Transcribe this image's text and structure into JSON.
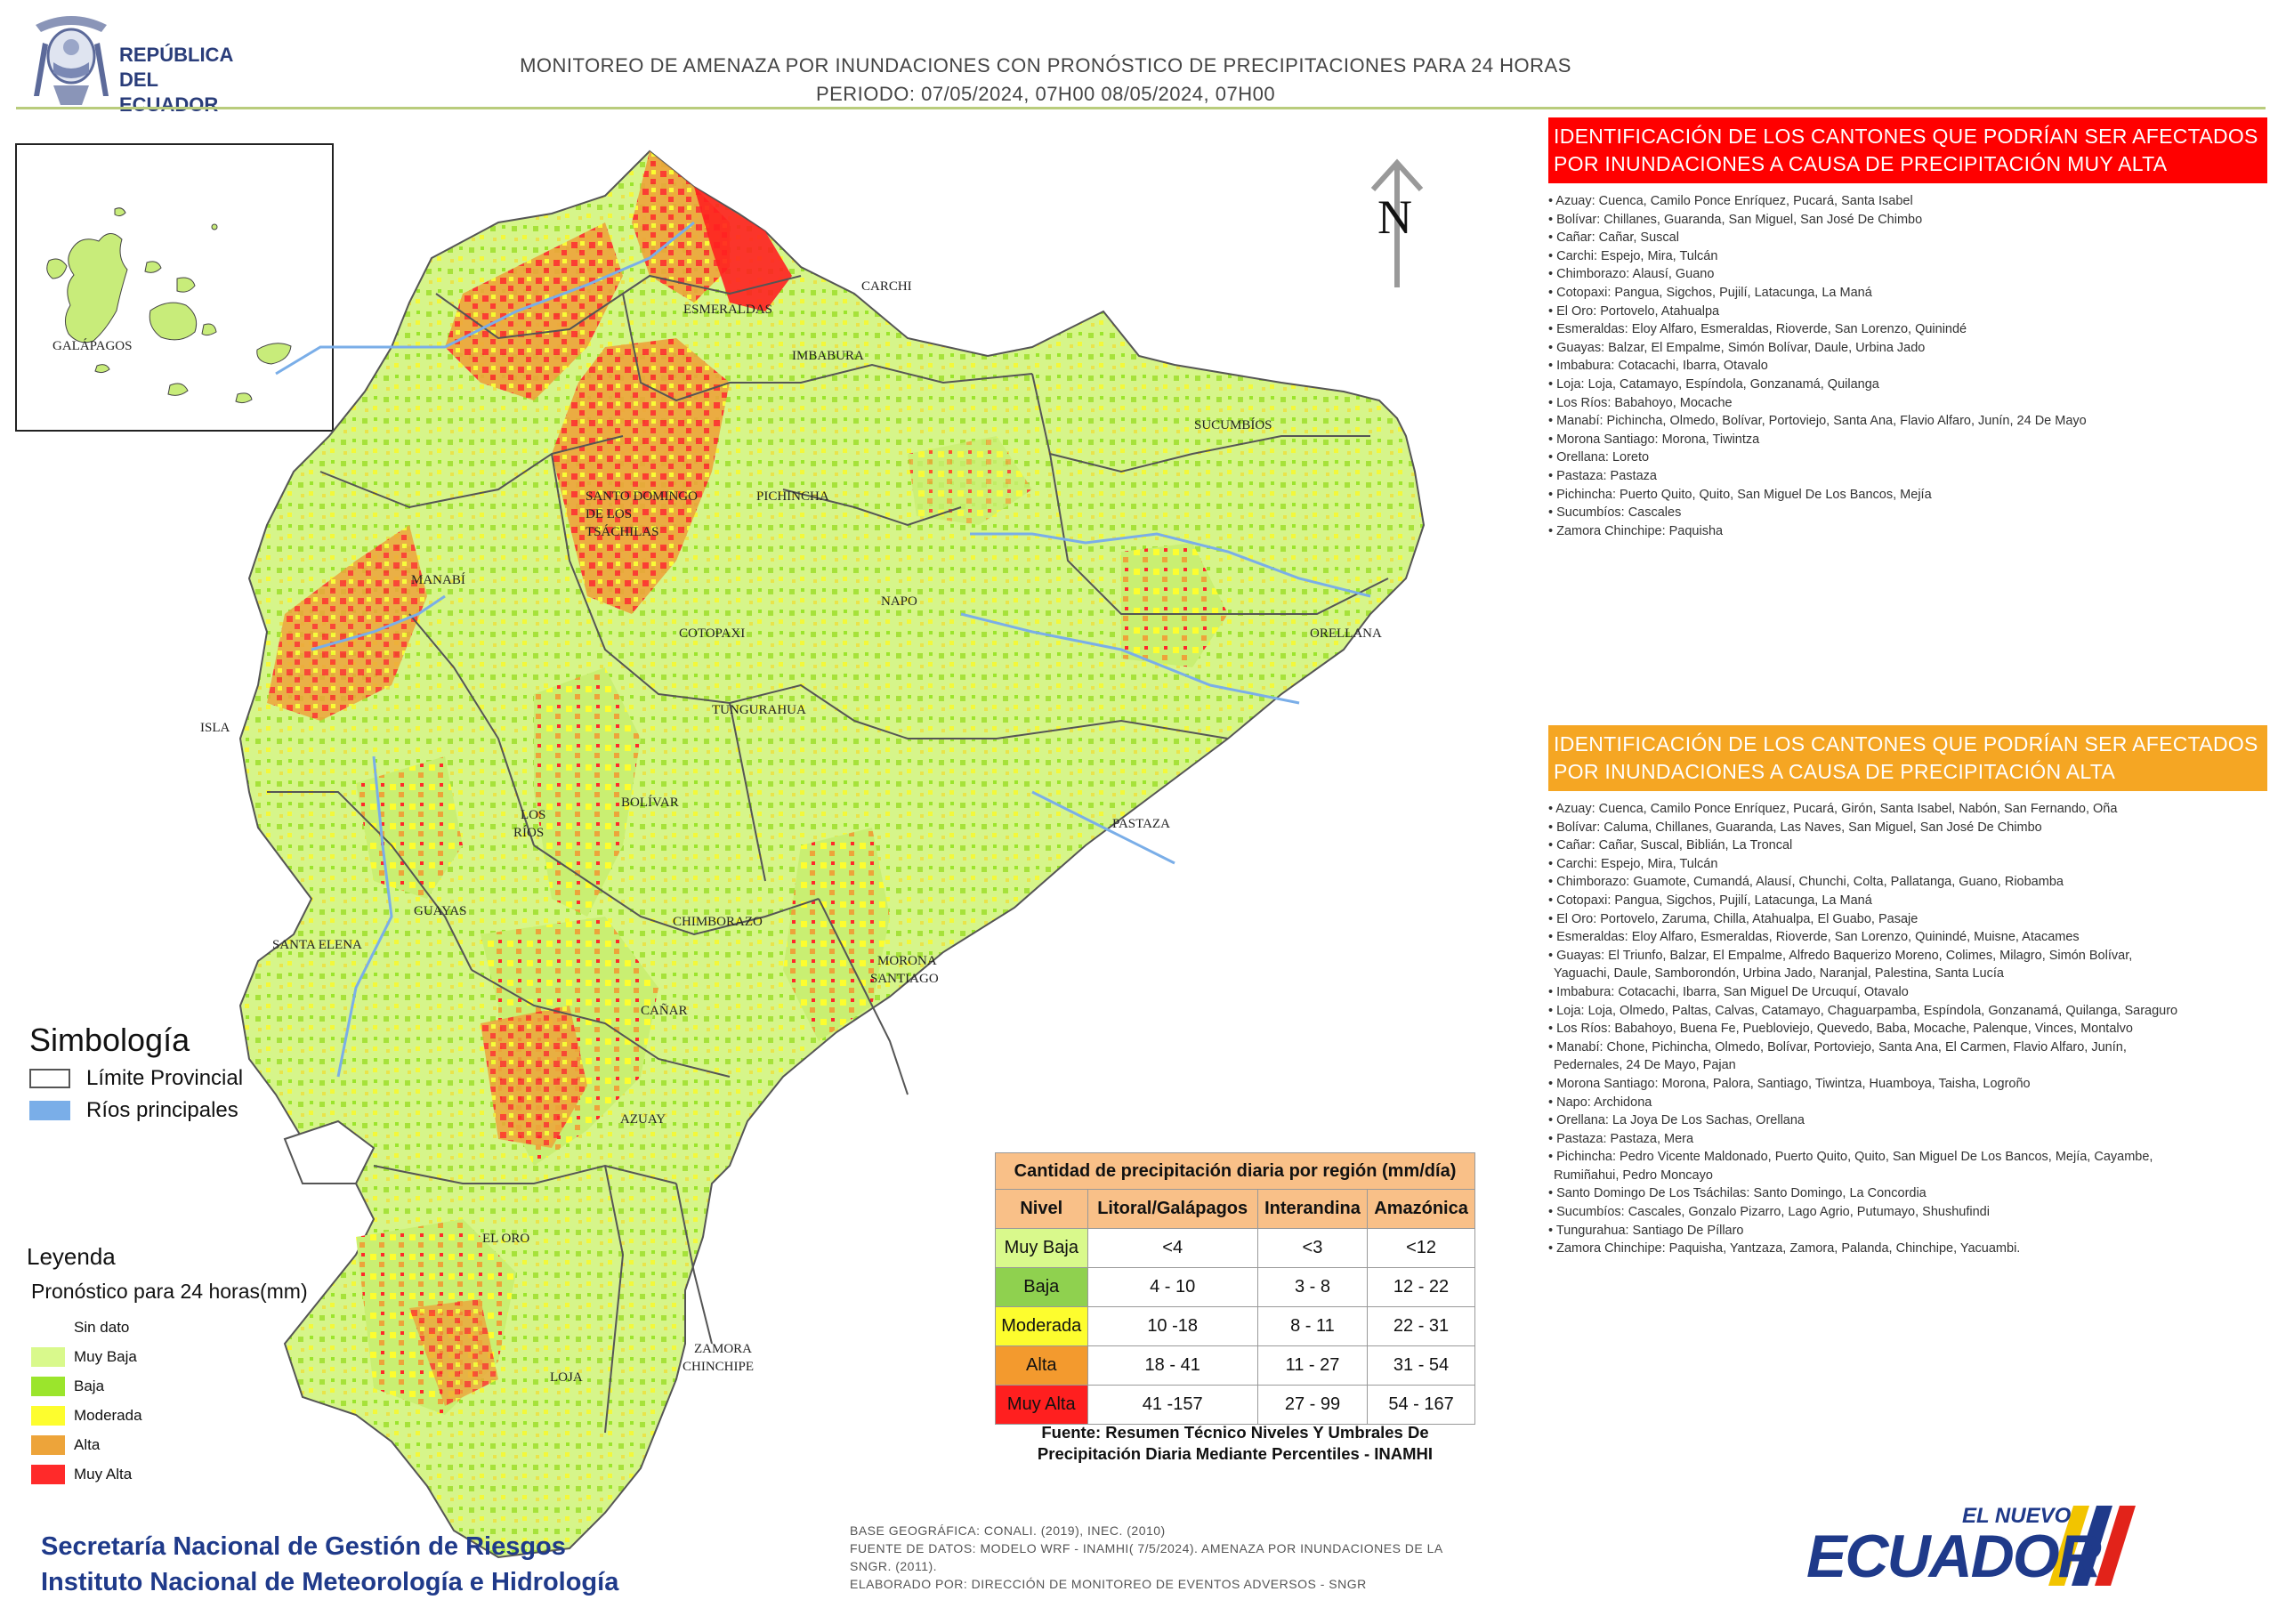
{
  "header": {
    "logo_text_line1": "REPÚBLICA",
    "logo_text_line2": "DEL ECUADOR",
    "title_line1": "MONITOREO DE AMENAZA POR INUNDACIONES  CON PRONÓSTICO DE  PRECIPITACIONES PARA 24 HORAS",
    "title_line2": "PERIODO: 07/05/2024, 07H00 08/05/2024, 07H00"
  },
  "map": {
    "north_label": "N",
    "galapagos_label": "GALÁPAGOS",
    "isla_label": "ISLA",
    "province_labels": [
      "CARCHI",
      "ESMERALDAS",
      "IMBABURA",
      "SUCUMBÍOS",
      "SANTO DOMINGO",
      "DE LOS",
      "TSÁCHILAS",
      "PICHINCHA",
      "MANABÍ",
      "NAPO",
      "ORELLANA",
      "COTOPAXI",
      "TUNGURAHUA",
      "LOS",
      "RÍOS",
      "BOLÍVAR",
      "PASTAZA",
      "GUAYAS",
      "SANTA ELENA",
      "CHIMBORAZO",
      "MORONA",
      "SANTIAGO",
      "CAÑAR",
      "AZUAY",
      "EL ORO",
      "ZAMORA",
      "CHINCHIPE",
      "LOJA"
    ]
  },
  "simbologia": {
    "title": "Simbología",
    "items": [
      {
        "label": "Límite Provincial",
        "color": "#ffffff"
      },
      {
        "label": "Ríos principales",
        "color": "#7aaee8"
      }
    ]
  },
  "leyenda": {
    "title": "Leyenda",
    "subtitle": "Pronóstico para 24 horas(mm)",
    "items": [
      {
        "label": "Sin dato",
        "color": "#ffffff"
      },
      {
        "label": "Muy Baja",
        "color": "#d9f98c"
      },
      {
        "label": "Baja",
        "color": "#9be52c"
      },
      {
        "label": "Moderada",
        "color": "#fdfd2e"
      },
      {
        "label": "Alta",
        "color": "#eda43a"
      },
      {
        "label": "Muy Alta",
        "color": "#ff2a2a"
      }
    ]
  },
  "panel_muy_alta": {
    "heading": "IDENTIFICACIÓN DE LOS CANTONES QUE PODRÍAN SER AFECTADOS POR INUNDACIONES  A CAUSA DE PRECIPITACIÓN MUY ALTA",
    "items": [
      "• Azuay: Cuenca, Camilo Ponce Enríquez, Pucará, Santa Isabel",
      "• Bolívar: Chillanes, Guaranda, San Miguel, San José De Chimbo",
      "• Cañar: Cañar, Suscal",
      "• Carchi: Espejo, Mira, Tulcán",
      "• Chimborazo: Alausí, Guano",
      "• Cotopaxi: Pangua, Sigchos, Pujilí, Latacunga, La Maná",
      "• El Oro: Portovelo, Atahualpa",
      "• Esmeraldas: Eloy Alfaro, Esmeraldas, Rioverde, San Lorenzo, Quinindé",
      "• Guayas: Balzar, El Empalme, Simón Bolívar, Daule, Urbina Jado",
      "• Imbabura: Cotacachi, Ibarra, Otavalo",
      "• Loja: Loja, Catamayo, Espíndola, Gonzanamá, Quilanga",
      "• Los Ríos: Babahoyo, Mocache",
      "• Manabí: Pichincha, Olmedo, Bolívar, Portoviejo, Santa Ana, Flavio Alfaro, Junín, 24 De Mayo",
      "• Morona Santiago: Morona, Tiwintza",
      "• Orellana: Loreto",
      "• Pastaza: Pastaza",
      "• Pichincha: Puerto Quito, Quito, San Miguel De Los Bancos, Mejía",
      "• Sucumbíos: Cascales",
      "• Zamora Chinchipe: Paquisha"
    ]
  },
  "panel_alta": {
    "heading": "IDENTIFICACIÓN DE LOS CANTONES QUE  PODRÍAN SER AFECTADOS POR INUNDACIONES  A CAUSA DE PRECIPITACIÓN  ALTA",
    "items": [
      "• Azuay: Cuenca, Camilo Ponce Enríquez, Pucará, Girón, Santa Isabel, Nabón, San Fernando, Oña",
      "• Bolívar: Caluma, Chillanes, Guaranda, Las Naves, San Miguel, San José De Chimbo",
      "• Cañar: Cañar, Suscal, Biblián, La Troncal",
      "• Carchi: Espejo, Mira, Tulcán",
      "• Chimborazo: Guamote, Cumandá, Alausí, Chunchi, Colta, Pallatanga, Guano, Riobamba",
      "• Cotopaxi: Pangua, Sigchos, Pujilí, Latacunga, La Maná",
      "• El Oro: Portovelo, Zaruma, Chilla, Atahualpa, El Guabo, Pasaje",
      "• Esmeraldas: Eloy Alfaro, Esmeraldas, Rioverde, San Lorenzo, Quinindé, Muisne, Atacames",
      "• Guayas: El Triunfo, Balzar, El Empalme, Alfredo Baquerizo Moreno, Colimes, Milagro, Simón Bolívar,",
      "Yaguachi, Daule, Samborondón, Urbina Jado, Naranjal, Palestina, Santa Lucía",
      "• Imbabura: Cotacachi, Ibarra, San Miguel De Urcuquí, Otavalo",
      "• Loja: Loja, Olmedo, Paltas, Calvas, Catamayo, Chaguarpamba, Espíndola, Gonzanamá, Quilanga, Saraguro",
      "• Los Ríos: Babahoyo, Buena Fe, Puebloviejo, Quevedo, Baba, Mocache, Palenque, Vinces, Montalvo",
      "• Manabí: Chone, Pichincha, Olmedo, Bolívar, Portoviejo, Santa Ana, El Carmen, Flavio Alfaro, Junín,",
      "Pedernales, 24 De Mayo, Pajan",
      "• Morona Santiago: Morona, Palora, Santiago, Tiwintza, Huamboya, Taisha, Logroño",
      "• Napo: Archidona",
      "• Orellana: La Joya De Los Sachas, Orellana",
      "• Pastaza: Pastaza, Mera",
      "• Pichincha: Pedro Vicente Maldonado, Puerto Quito, Quito, San Miguel De Los Bancos, Mejía, Cayambe,",
      "Rumiñahui, Pedro Moncayo",
      "• Santo Domingo De Los Tsáchilas: Santo Domingo, La Concordia",
      "• Sucumbíos: Cascales, Gonzalo Pizarro, Lago Agrio, Putumayo, Shushufindi",
      "• Tungurahua: Santiago De Píllaro",
      "• Zamora Chinchipe: Paquisha, Yantzaza, Zamora, Palanda, Chinchipe, Yacuambi."
    ]
  },
  "precip_table": {
    "title": "Cantidad de precipitación diaria por región (mm/día)",
    "headers": [
      "Nivel",
      "Litoral/Galápagos",
      "Interandina",
      "Amazónica"
    ],
    "rows": [
      {
        "nivel": "Muy Baja",
        "color": "#d9f98c",
        "values": [
          "<4",
          "<3",
          "<12"
        ]
      },
      {
        "nivel": "Baja",
        "color": "#8fd14f",
        "values": [
          "4 - 10",
          "3 - 8",
          "12 - 22"
        ]
      },
      {
        "nivel": "Moderada",
        "color": "#fdfd2e",
        "values": [
          "10 -18",
          "8 - 11",
          "22 - 31"
        ]
      },
      {
        "nivel": "Alta",
        "color": "#f39a2e",
        "values": [
          "18 - 41",
          "11 - 27",
          "31 - 54"
        ]
      },
      {
        "nivel": "Muy Alta",
        "color": "#ff1f1f",
        "values": [
          "41 -157",
          "27 - 99",
          "54 - 167"
        ]
      }
    ],
    "source": "Fuente: Resumen Técnico Niveles Y Umbrales De Precipitación Diaria Mediante Percentiles - INAMHI"
  },
  "footer": {
    "org_line1": "Secretaría Nacional de Gestión de Riesgos",
    "org_line2": "Instituto Nacional de Meteorología e Hidrología",
    "base_line1": "BASE GEOGRÁFICA: CONALI. (2019), INEC. (2010)",
    "base_line2": "FUENTE DE DATOS: MODELO WRF - INAMHI( 7/5/2024).  AMENAZA POR INUNDACIONES DE LA",
    "base_line3": "SNGR. (2011).",
    "base_line4": "ELABORADO POR: DIRECCIÓN DE MONITOREO DE EVENTOS ADVERSOS - SNGR",
    "brand_small": "EL NUEVO",
    "brand_big": "ECUADOR"
  }
}
